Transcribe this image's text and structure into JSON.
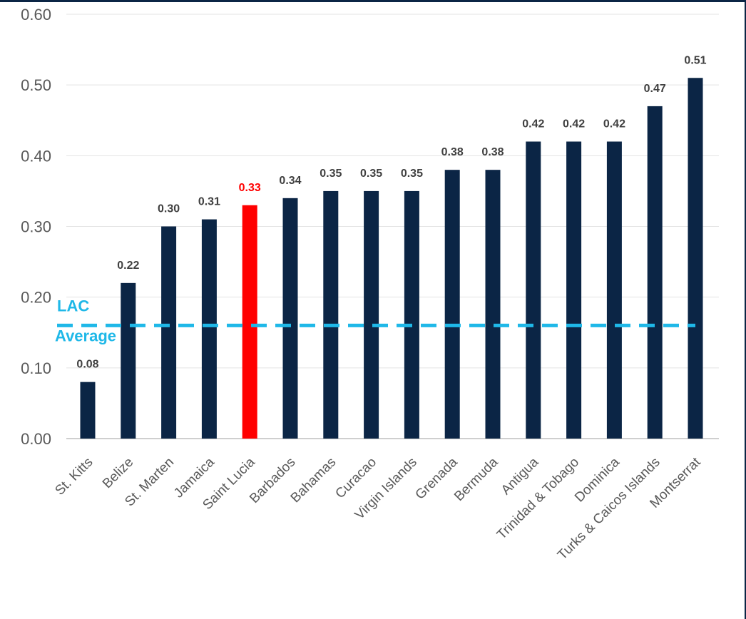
{
  "chart_data": {
    "type": "bar",
    "title": "",
    "xlabel": "",
    "ylabel": "",
    "ylim": [
      0,
      0.6
    ],
    "yticks": [
      "0.00",
      "0.10",
      "0.20",
      "0.30",
      "0.40",
      "0.50",
      "0.60"
    ],
    "grid": true,
    "categories": [
      "St. Kitts",
      "Belize",
      "St. Marten",
      "Jamaica",
      "Saint Lucia",
      "Barbados",
      "Bahamas",
      "Curacao",
      "Virgin Islands",
      "Grenada",
      "Bermuda",
      "Antigua",
      "Trinidad & Tobago",
      "Dominica",
      "Turks & Caicos Islands",
      "Montserrat"
    ],
    "values": [
      0.08,
      0.22,
      0.3,
      0.31,
      0.33,
      0.34,
      0.35,
      0.35,
      0.35,
      0.38,
      0.38,
      0.42,
      0.42,
      0.42,
      0.47,
      0.51
    ],
    "value_labels": [
      "0.08",
      "0.22",
      "0.30",
      "0.31",
      "0.33",
      "0.34",
      "0.35",
      "0.35",
      "0.35",
      "0.38",
      "0.38",
      "0.42",
      "0.42",
      "0.42",
      "0.47",
      "0.51"
    ],
    "highlight_index": 4,
    "bar_color": "#0b2545",
    "highlight_color": "#ff0000",
    "reference_line": {
      "label_line1": "LAC",
      "label_line2": "Average",
      "value": 0.16,
      "color": "#1fb8e8",
      "style": "dashed"
    }
  }
}
